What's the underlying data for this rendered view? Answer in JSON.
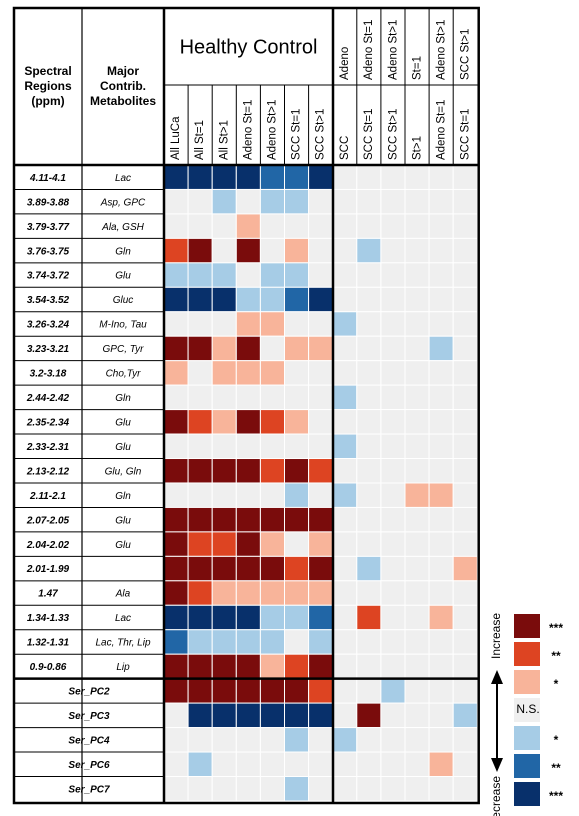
{
  "chart_data": {
    "type": "heatmap",
    "header": {
      "col1": [
        "Spectral",
        "Regions",
        "(ppm)"
      ],
      "col2": [
        "Major",
        "Contrib.",
        "Metabolites"
      ],
      "group1_title": "Healthy Control",
      "group1_columns": [
        "All LuCa",
        "All St=1",
        "All St>1",
        "Adeno St=1",
        "Adeno St>1",
        "SCC St=1",
        "SCC St>1"
      ],
      "group2_top": [
        "Adeno",
        "Adeno St=1",
        "Adeno St>1",
        "St=1",
        "Adeno St>1",
        "SCC St>1"
      ],
      "group2_bottom": [
        "SCC",
        "SCC St=1",
        "SCC St>1",
        "St>1",
        "Adeno St=1",
        "SCC St=1"
      ]
    },
    "rows": [
      {
        "region": "4.11-4.1",
        "metab": "Lac",
        "v": [
          -3,
          -3,
          -3,
          -3,
          -2,
          -2,
          -3,
          0,
          0,
          0,
          0,
          0,
          0
        ]
      },
      {
        "region": "3.89-3.88",
        "metab": "Asp, GPC",
        "v": [
          0,
          0,
          -1,
          0,
          -1,
          -1,
          0,
          0,
          0,
          0,
          0,
          0,
          0
        ]
      },
      {
        "region": "3.79-3.77",
        "metab": "Ala, GSH",
        "v": [
          0,
          0,
          0,
          1,
          0,
          0,
          0,
          0,
          0,
          0,
          0,
          0,
          0
        ]
      },
      {
        "region": "3.76-3.75",
        "metab": "Gln",
        "v": [
          2,
          3,
          0,
          3,
          0,
          1,
          0,
          0,
          -1,
          0,
          0,
          0,
          0
        ]
      },
      {
        "region": "3.74-3.72",
        "metab": "Glu",
        "v": [
          -1,
          -1,
          -1,
          0,
          -1,
          -1,
          0,
          0,
          0,
          0,
          0,
          0,
          0
        ]
      },
      {
        "region": "3.54-3.52",
        "metab": "Gluc",
        "v": [
          -3,
          -3,
          -3,
          -1,
          -1,
          -2,
          -3,
          0,
          0,
          0,
          0,
          0,
          0
        ]
      },
      {
        "region": "3.26-3.24",
        "metab": "M-Ino, Tau",
        "v": [
          0,
          0,
          0,
          1,
          1,
          0,
          0,
          -1,
          0,
          0,
          0,
          0,
          0
        ]
      },
      {
        "region": "3.23-3.21",
        "metab": "GPC, Tyr",
        "v": [
          3,
          3,
          1,
          3,
          0,
          1,
          1,
          0,
          0,
          0,
          0,
          -1,
          0
        ]
      },
      {
        "region": "3.2-3.18",
        "metab": "Cho,Tyr",
        "v": [
          1,
          0,
          1,
          1,
          1,
          0,
          0,
          0,
          0,
          0,
          0,
          0,
          0
        ]
      },
      {
        "region": "2.44-2.42",
        "metab": "Gln",
        "v": [
          0,
          0,
          0,
          0,
          0,
          0,
          0,
          -1,
          0,
          0,
          0,
          0,
          0
        ]
      },
      {
        "region": "2.35-2.34",
        "metab": "Glu",
        "v": [
          3,
          2,
          1,
          3,
          2,
          1,
          0,
          0,
          0,
          0,
          0,
          0,
          0
        ]
      },
      {
        "region": "2.33-2.31",
        "metab": "Glu",
        "v": [
          0,
          0,
          0,
          0,
          0,
          0,
          0,
          -1,
          0,
          0,
          0,
          0,
          0
        ]
      },
      {
        "region": "2.13-2.12",
        "metab": "Glu, Gln",
        "v": [
          3,
          3,
          3,
          3,
          2,
          3,
          2,
          0,
          0,
          0,
          0,
          0,
          0
        ]
      },
      {
        "region": "2.11-2.1",
        "metab": "Gln",
        "v": [
          0,
          0,
          0,
          0,
          0,
          -1,
          0,
          -1,
          0,
          0,
          1,
          1,
          0
        ]
      },
      {
        "region": "2.07-2.05",
        "metab": "Glu",
        "v": [
          3,
          3,
          3,
          3,
          3,
          3,
          3,
          0,
          0,
          0,
          0,
          0,
          0
        ]
      },
      {
        "region": "2.04-2.02",
        "metab": "Glu",
        "v": [
          3,
          2,
          2,
          3,
          1,
          0,
          1,
          0,
          0,
          0,
          0,
          0,
          0
        ]
      },
      {
        "region": "2.01-1.99",
        "metab": "",
        "v": [
          3,
          3,
          3,
          3,
          3,
          2,
          3,
          0,
          -1,
          0,
          0,
          0,
          1
        ]
      },
      {
        "region": "1.47",
        "metab": "Ala",
        "v": [
          3,
          2,
          1,
          1,
          1,
          1,
          1,
          0,
          0,
          0,
          0,
          0,
          0
        ]
      },
      {
        "region": "1.34-1.33",
        "metab": "Lac",
        "v": [
          -3,
          -3,
          -3,
          -3,
          -1,
          -1,
          -2,
          0,
          2,
          0,
          0,
          1,
          0
        ]
      },
      {
        "region": "1.32-1.31",
        "metab": "Lac, Thr, Lip",
        "v": [
          -2,
          -1,
          -1,
          -1,
          -1,
          0,
          -1,
          0,
          0,
          0,
          0,
          0,
          0
        ]
      },
      {
        "region": "0.9-0.86",
        "metab": "Lip",
        "v": [
          3,
          3,
          3,
          3,
          1,
          2,
          3,
          0,
          0,
          0,
          0,
          0,
          0
        ]
      },
      {
        "region": "Ser_PC2",
        "metab": "",
        "v": [
          3,
          3,
          3,
          3,
          3,
          3,
          2,
          0,
          0,
          -1,
          0,
          0,
          0
        ]
      },
      {
        "region": "Ser_PC3",
        "metab": "",
        "v": [
          0,
          -3,
          -3,
          -3,
          -3,
          -3,
          -3,
          0,
          3,
          0,
          0,
          0,
          -1
        ]
      },
      {
        "region": "Ser_PC4",
        "metab": "",
        "v": [
          0,
          0,
          0,
          0,
          0,
          -1,
          0,
          -1,
          0,
          0,
          0,
          0,
          0
        ]
      },
      {
        "region": "Ser_PC6",
        "metab": "",
        "v": [
          0,
          -1,
          0,
          0,
          0,
          0,
          0,
          0,
          0,
          0,
          0,
          1,
          0
        ]
      },
      {
        "region": "Ser_PC7",
        "metab": "",
        "v": [
          0,
          0,
          0,
          0,
          0,
          -1,
          0,
          0,
          0,
          0,
          0,
          0,
          0
        ]
      }
    ],
    "colors": {
      "3": "#7a0c0c",
      "2": "#dd4422",
      "1": "#f8b49a",
      "0": "#efefef",
      "-1": "#a6cce6",
      "-2": "#2166a6",
      "-3": "#08306b"
    },
    "legend": {
      "increase": "Increase",
      "decrease": "Decrease",
      "ns": "N.S.",
      "levels": [
        {
          "value": 3,
          "stars": "***"
        },
        {
          "value": 2,
          "stars": "**"
        },
        {
          "value": 1,
          "stars": "*"
        },
        {
          "value": 0,
          "stars": "N.S."
        },
        {
          "value": -1,
          "stars": "*"
        },
        {
          "value": -2,
          "stars": "**"
        },
        {
          "value": -3,
          "stars": "***"
        }
      ]
    }
  }
}
